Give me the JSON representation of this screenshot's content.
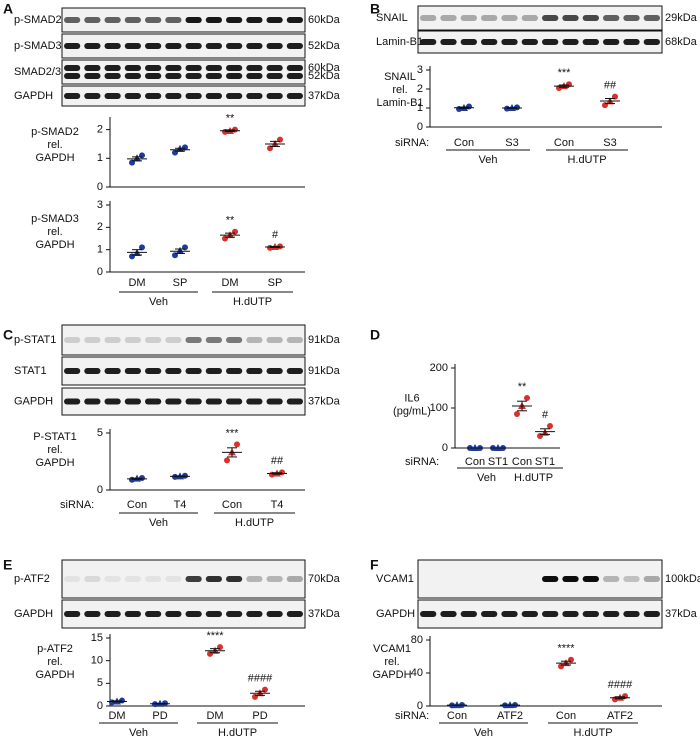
{
  "panels": [
    {
      "letter": "A",
      "blot": [
        {
          "label": "p-SMAD2",
          "kda": [
            "60kDa"
          ]
        },
        {
          "label": "p-SMAD3",
          "kda": [
            "52kDa"
          ]
        },
        {
          "label": "SMAD2/3",
          "kda": [
            "60kDa",
            "52kDa"
          ]
        },
        {
          "label": "GAPDH",
          "kda": [
            "37kDa"
          ]
        }
      ]
    },
    {
      "letter": "B",
      "blot": [
        {
          "label": "SNAIL",
          "kda": [
            "29kDa"
          ]
        },
        {
          "label": "Lamin-B1",
          "kda": [
            "68kDa"
          ]
        }
      ]
    },
    {
      "letter": "C",
      "blot": [
        {
          "label": "p-STAT1",
          "kda": [
            "91kDa"
          ]
        },
        {
          "label": "STAT1",
          "kda": [
            "91kDa"
          ]
        },
        {
          "label": "GAPDH",
          "kda": [
            "37kDa"
          ]
        }
      ]
    },
    {
      "letter": "D"
    },
    {
      "letter": "E",
      "blot": [
        {
          "label": "p-ATF2",
          "kda": [
            "70kDa"
          ]
        },
        {
          "label": "GAPDH",
          "kda": [
            "37kDa"
          ]
        }
      ]
    },
    {
      "letter": "F",
      "blot": [
        {
          "label": "VCAM1",
          "kda": [
            "100kDa"
          ]
        },
        {
          "label": "GAPDH",
          "kda": [
            "37kDa"
          ]
        }
      ]
    }
  ],
  "chart_data": [
    {
      "type": "dot",
      "ylabel": [
        "p-SMAD2",
        "rel.",
        "GAPDH"
      ],
      "ylim": [
        0,
        2.3
      ],
      "yticks": [
        0,
        1,
        2
      ],
      "colors": [
        "#1f3a9e",
        "#1f3a9e",
        "#d8302a",
        "#d8302a"
      ],
      "points": [
        [
          0.85,
          1.0,
          1.1
        ],
        [
          1.2,
          1.33,
          1.38
        ],
        [
          1.92,
          1.95,
          2.0
        ],
        [
          1.35,
          1.5,
          1.65
        ]
      ],
      "means": [
        0.98,
        1.3,
        1.96,
        1.5
      ],
      "errors": [
        0.07,
        0.05,
        0.03,
        0.09
      ],
      "annotations": [
        {
          "index": 2,
          "text": "**"
        }
      ]
    },
    {
      "type": "dot",
      "ylabel": [
        "p-SMAD3",
        "rel.",
        "GAPDH"
      ],
      "ylim": [
        0,
        3
      ],
      "yticks": [
        0,
        1,
        2,
        3
      ],
      "colors": [
        "#1f3a9e",
        "#1f3a9e",
        "#d8302a",
        "#d8302a"
      ],
      "categories": [
        "DM",
        "SP",
        "DM",
        "SP"
      ],
      "groups": [
        "Veh",
        "H.dUTP"
      ],
      "points": [
        [
          0.7,
          0.85,
          1.1
        ],
        [
          0.75,
          0.95,
          1.1
        ],
        [
          1.5,
          1.65,
          1.8
        ],
        [
          1.08,
          1.12,
          1.15
        ]
      ],
      "means": [
        0.88,
        0.93,
        1.65,
        1.12
      ],
      "errors": [
        0.12,
        0.1,
        0.09,
        0.02
      ],
      "annotations": [
        {
          "index": 2,
          "text": "**"
        },
        {
          "index": 3,
          "text": "#"
        }
      ]
    },
    {
      "type": "dot",
      "ylabel": [
        "SNAIL",
        "rel.",
        "Lamin-B1"
      ],
      "ylim": [
        0,
        3
      ],
      "yticks": [
        0,
        1,
        2,
        3
      ],
      "colors": [
        "#1f3a9e",
        "#1f3a9e",
        "#d8302a",
        "#d8302a"
      ],
      "xrow_label": "siRNA:",
      "categories": [
        "Con",
        "S3",
        "Con",
        "S3"
      ],
      "groups": [
        "Veh",
        "H.dUTP"
      ],
      "points": [
        [
          0.95,
          1.0,
          1.08
        ],
        [
          0.97,
          1.0,
          1.03
        ],
        [
          2.05,
          2.15,
          2.25
        ],
        [
          1.15,
          1.35,
          1.6
        ]
      ],
      "means": [
        1.01,
        1.0,
        2.15,
        1.37
      ],
      "errors": [
        0.04,
        0.02,
        0.06,
        0.13
      ],
      "annotations": [
        {
          "index": 2,
          "text": "***"
        },
        {
          "index": 3,
          "text": "##"
        }
      ]
    },
    {
      "type": "dot",
      "ylabel": [
        "P-STAT1",
        "rel.",
        "GAPDH"
      ],
      "ylim": [
        0,
        5
      ],
      "yticks": [
        0,
        5
      ],
      "colors": [
        "#1f3a9e",
        "#1f3a9e",
        "#d8302a",
        "#d8302a"
      ],
      "xrow_label": "siRNA:",
      "categories": [
        "Con",
        "T4",
        "Con",
        "T4"
      ],
      "groups": [
        "Veh",
        "H.dUTP"
      ],
      "points": [
        [
          0.9,
          1.0,
          1.05
        ],
        [
          1.15,
          1.2,
          1.25
        ],
        [
          2.6,
          3.3,
          4.0
        ],
        [
          1.35,
          1.45,
          1.55
        ]
      ],
      "means": [
        0.98,
        1.2,
        3.3,
        1.45
      ],
      "errors": [
        0.05,
        0.03,
        0.4,
        0.06
      ],
      "annotations": [
        {
          "index": 2,
          "text": "***"
        },
        {
          "index": 3,
          "text": "##"
        }
      ]
    },
    {
      "type": "dot",
      "ylabel": [
        "IL6",
        "(pg/mL)"
      ],
      "ylim": [
        0,
        200
      ],
      "yticks": [
        0,
        100,
        200
      ],
      "colors": [
        "#1f3a9e",
        "#1f3a9e",
        "#d8302a",
        "#d8302a"
      ],
      "xrow_label": "siRNA:",
      "categories": [
        "Con",
        "ST1",
        "Con",
        "ST1"
      ],
      "groups": [
        "Veh",
        "H.dUTP"
      ],
      "points": [
        [
          0,
          0,
          0
        ],
        [
          0,
          0,
          0
        ],
        [
          85,
          105,
          125
        ],
        [
          30,
          38,
          55
        ]
      ],
      "means": [
        0,
        0,
        105,
        41
      ],
      "errors": [
        0,
        0,
        12,
        7
      ],
      "annotations": [
        {
          "index": 2,
          "text": "**"
        },
        {
          "index": 3,
          "text": "#"
        }
      ]
    },
    {
      "type": "dot",
      "ylabel": [
        "p-ATF2",
        "rel.",
        "GAPDH"
      ],
      "ylim": [
        0,
        15
      ],
      "yticks": [
        0,
        5,
        10,
        15
      ],
      "colors": [
        "#1f3a9e",
        "#1f3a9e",
        "#d8302a",
        "#d8302a"
      ],
      "categories": [
        "DM",
        "PD",
        "DM",
        "PD"
      ],
      "groups": [
        "Veh",
        "H.dUTP"
      ],
      "points": [
        [
          0.8,
          1.0,
          1.2
        ],
        [
          0.4,
          0.5,
          0.6
        ],
        [
          11.5,
          12.2,
          13
        ],
        [
          2,
          2.8,
          3.6
        ]
      ],
      "means": [
        1.0,
        0.5,
        12.2,
        2.8
      ],
      "errors": [
        0.12,
        0.06,
        0.45,
        0.45
      ],
      "annotations": [
        {
          "index": 2,
          "text": "****"
        },
        {
          "index": 3,
          "text": "####"
        }
      ]
    },
    {
      "type": "dot",
      "ylabel": [
        "VCAM1",
        "rel.",
        "GAPDH"
      ],
      "ylim": [
        0,
        80
      ],
      "yticks": [
        0,
        40,
        80
      ],
      "colors": [
        "#1f3a9e",
        "#1f3a9e",
        "#d8302a",
        "#d8302a"
      ],
      "xrow_label": "siRNA:",
      "categories": [
        "Con",
        "ATF2",
        "Con",
        "ATF2"
      ],
      "groups": [
        "Veh",
        "H.dUTP"
      ],
      "points": [
        [
          0.8,
          1.0,
          1.2
        ],
        [
          0.8,
          1.0,
          1.2
        ],
        [
          48,
          52,
          56
        ],
        [
          8,
          10,
          12
        ]
      ],
      "means": [
        1,
        1,
        52,
        10
      ],
      "errors": [
        0.1,
        0.1,
        2.3,
        1.2
      ],
      "annotations": [
        {
          "index": 2,
          "text": "****"
        },
        {
          "index": 3,
          "text": "####"
        }
      ]
    }
  ]
}
